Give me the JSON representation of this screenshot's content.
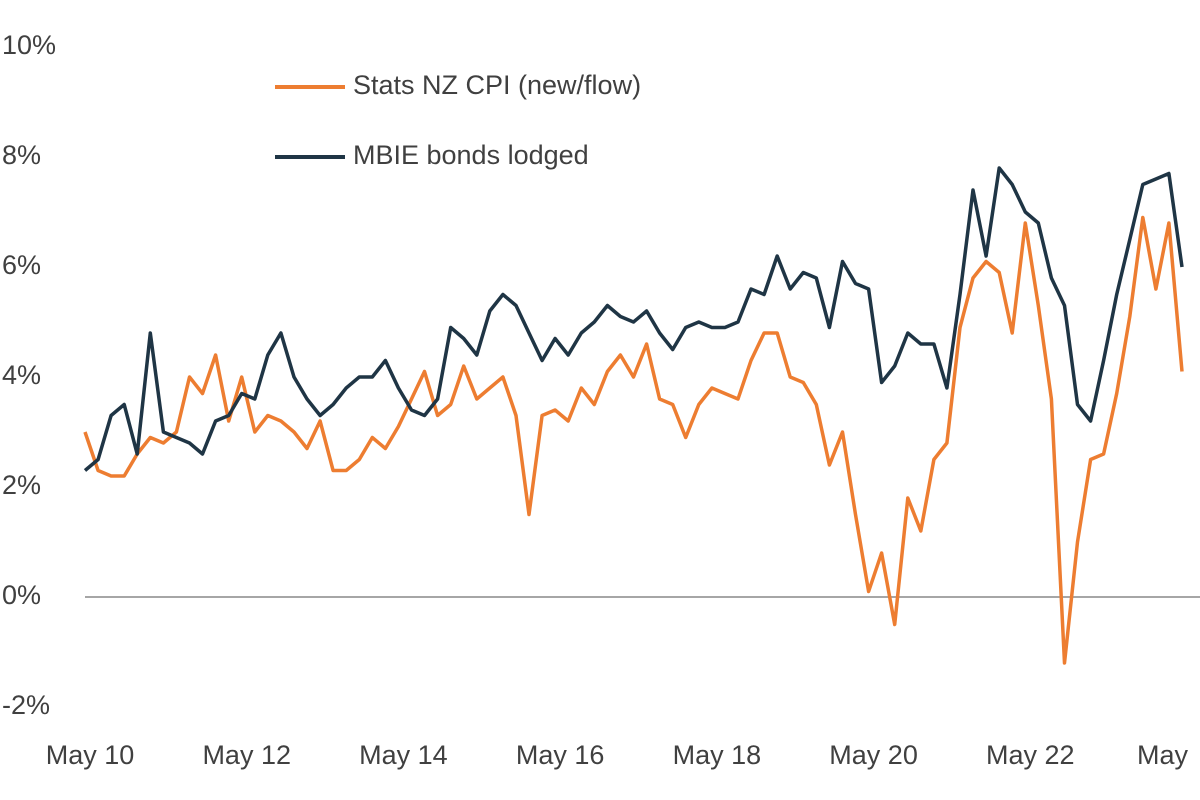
{
  "chart_data": {
    "type": "line",
    "categories": [
      "May 10",
      null,
      null,
      null,
      null,
      null,
      null,
      null,
      null,
      null,
      null,
      null,
      "May 12",
      null,
      null,
      null,
      null,
      null,
      null,
      null,
      null,
      null,
      null,
      null,
      "May 14",
      null,
      null,
      null,
      null,
      null,
      null,
      null,
      null,
      null,
      null,
      null,
      "May 16",
      null,
      null,
      null,
      null,
      null,
      null,
      null,
      null,
      null,
      null,
      null,
      "May 18",
      null,
      null,
      null,
      null,
      null,
      null,
      null,
      null,
      null,
      null,
      null,
      "May 20",
      null,
      null,
      null,
      null,
      null,
      null,
      null,
      null,
      null,
      null,
      null,
      "May 22",
      null,
      null,
      null,
      null,
      null,
      null,
      null,
      null,
      null,
      null,
      null,
      "May"
    ],
    "series": [
      {
        "name": "Stats NZ CPI (new/flow)",
        "color": "#ed7d31",
        "values": [
          3.0,
          2.3,
          2.2,
          2.2,
          2.6,
          2.9,
          2.8,
          3.0,
          4.0,
          3.7,
          4.4,
          3.2,
          4.0,
          3.0,
          3.3,
          3.2,
          3.0,
          2.7,
          3.2,
          2.3,
          2.3,
          2.5,
          2.9,
          2.7,
          3.1,
          3.6,
          4.1,
          3.3,
          3.5,
          4.2,
          3.6,
          3.8,
          4.0,
          3.3,
          1.5,
          3.3,
          3.4,
          3.2,
          3.8,
          3.5,
          4.1,
          4.4,
          4.0,
          4.6,
          3.6,
          3.5,
          2.9,
          3.5,
          3.8,
          3.7,
          3.6,
          4.3,
          4.8,
          4.8,
          4.0,
          3.9,
          3.5,
          2.4,
          3.0,
          1.5,
          0.1,
          0.8,
          -0.5,
          1.8,
          1.2,
          2.5,
          2.8,
          4.9,
          5.8,
          6.1,
          5.9,
          4.8,
          6.8,
          5.3,
          3.6,
          -1.2,
          1.0,
          2.5,
          2.6,
          3.7,
          5.1,
          6.9,
          5.6,
          6.8,
          4.1
        ]
      },
      {
        "name": "MBIE bonds lodged",
        "color": "#1f3545",
        "values": [
          2.3,
          2.5,
          3.3,
          3.5,
          2.6,
          4.8,
          3.0,
          2.9,
          2.8,
          2.6,
          3.2,
          3.3,
          3.7,
          3.6,
          4.4,
          4.8,
          4.0,
          3.6,
          3.3,
          3.5,
          3.8,
          4.0,
          4.0,
          4.3,
          3.8,
          3.4,
          3.3,
          3.6,
          4.9,
          4.7,
          4.4,
          5.2,
          5.5,
          5.3,
          4.8,
          4.3,
          4.7,
          4.4,
          4.8,
          5.0,
          5.3,
          5.1,
          5.0,
          5.2,
          4.8,
          4.5,
          4.9,
          5.0,
          4.9,
          4.9,
          5.0,
          5.6,
          5.5,
          6.2,
          5.6,
          5.9,
          5.8,
          4.9,
          6.1,
          5.7,
          5.6,
          3.9,
          4.2,
          4.8,
          4.6,
          4.6,
          3.8,
          5.5,
          7.4,
          6.2,
          7.8,
          7.5,
          7.0,
          6.8,
          5.8,
          5.3,
          3.5,
          3.2,
          4.3,
          5.5,
          6.5,
          7.5,
          7.6,
          7.7,
          6.0
        ]
      }
    ],
    "ylim": [
      -2.5,
      10.5
    ],
    "yticks": [
      {
        "value": -2,
        "label": "-2%"
      },
      {
        "value": 0,
        "label": "0%"
      },
      {
        "value": 2,
        "label": "2%"
      },
      {
        "value": 4,
        "label": "4%"
      },
      {
        "value": 6,
        "label": "6%"
      },
      {
        "value": 8,
        "label": "8%"
      },
      {
        "value": 10,
        "label": "10%"
      }
    ],
    "legend": "upper left"
  }
}
